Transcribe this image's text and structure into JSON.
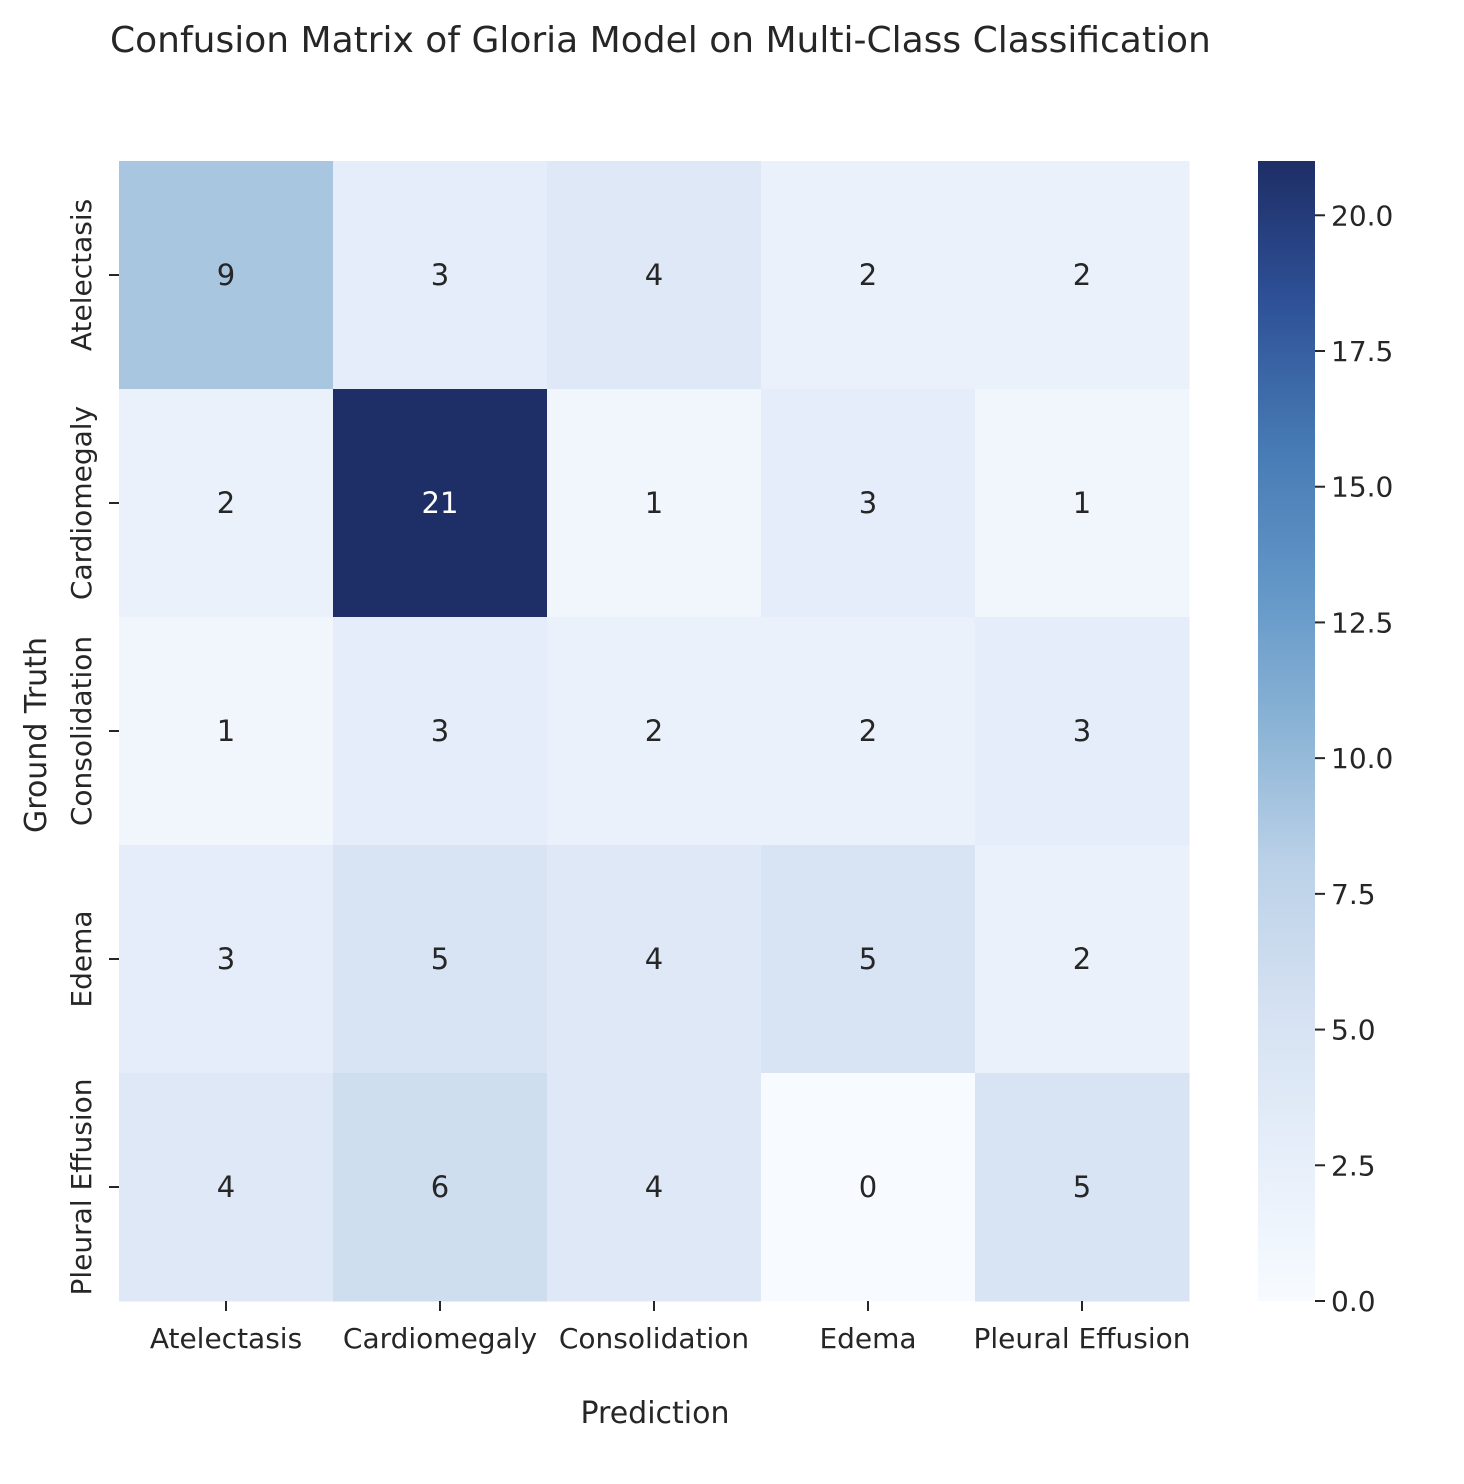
{
  "chart_data": {
    "type": "heatmap",
    "title": "Confusion Matrix of Gloria Model on Multi-Class Classification",
    "xlabel": "Prediction",
    "ylabel": "Ground Truth",
    "x_categories": [
      "Atelectasis",
      "Cardiomegaly",
      "Consolidation",
      "Edema",
      "Pleural Effusion"
    ],
    "y_categories": [
      "Atelectasis",
      "Cardiomegaly",
      "Consolidation",
      "Edema",
      "Pleural Effusion"
    ],
    "values": [
      [
        9,
        3,
        4,
        2,
        2
      ],
      [
        2,
        21,
        1,
        3,
        1
      ],
      [
        1,
        3,
        2,
        2,
        3
      ],
      [
        3,
        5,
        4,
        5,
        2
      ],
      [
        4,
        6,
        4,
        0,
        5
      ]
    ],
    "colorbar": {
      "range": [
        0,
        21
      ],
      "ticks": [
        0.0,
        2.5,
        5.0,
        7.5,
        10.0,
        12.5,
        15.0,
        17.5,
        20.0
      ],
      "tick_labels": [
        "0.0",
        "2.5",
        "5.0",
        "7.5",
        "10.0",
        "12.5",
        "15.0",
        "17.5",
        "20.0"
      ],
      "colormap": "Blues",
      "color_low": "#f7fbff",
      "color_high": "#1e2e66"
    },
    "grid": false
  }
}
